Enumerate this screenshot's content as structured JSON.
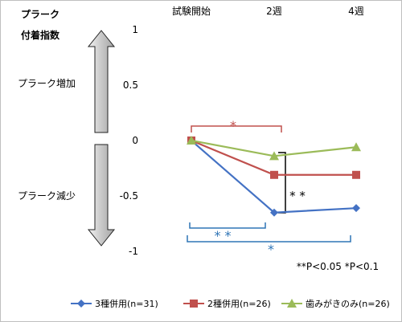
{
  "chart_data": {
    "type": "line",
    "title": "",
    "ylabel": "プラーク付着指数",
    "ylabel_lines": [
      "プラーク",
      "付着指数"
    ],
    "categories": [
      "試験開始",
      "2週",
      "4週"
    ],
    "ylim": [
      -1,
      1
    ],
    "yticks": [
      1,
      0.5,
      0,
      -0.5,
      -1
    ],
    "ytick_labels": [
      "1",
      "0.5",
      "0",
      "-0.5",
      "-1"
    ],
    "grid": false,
    "legend_position": "bottom",
    "series": [
      {
        "name": "3種併用(n=31)",
        "values": [
          0,
          -0.65,
          -0.61
        ],
        "color": "#4472C4",
        "marker": "diamond"
      },
      {
        "name": "2種併用(n=26)",
        "values": [
          0,
          -0.31,
          -0.31
        ],
        "color": "#C0504D",
        "marker": "square"
      },
      {
        "name": "歯みがきのみ(n=26)",
        "values": [
          0,
          -0.14,
          -0.06
        ],
        "color": "#9BBB59",
        "marker": "triangle"
      }
    ],
    "annotations": {
      "increase_label": "プラーク増加",
      "decrease_label": "プラーク減少",
      "red_star": "*",
      "black_stars": "* *",
      "blue_stars_short": "* *",
      "blue_star_long": "*",
      "significance_note": "**P<0.05 *P<0.1"
    },
    "colors": {
      "red": "#C0504D",
      "blue": "#2E75B6",
      "black": "#000000",
      "arrow_fill": "#bfbfbf"
    }
  }
}
